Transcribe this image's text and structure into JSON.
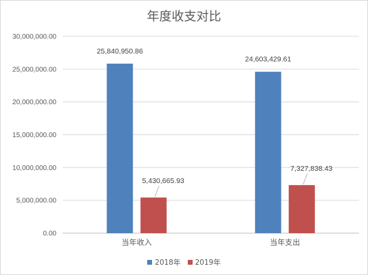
{
  "chart_data": {
    "type": "bar",
    "title": "年度收支对比",
    "categories": [
      "当年收入",
      "当年支出"
    ],
    "series": [
      {
        "name": "2018年",
        "color": "#4f81bd",
        "values": [
          25840950.86,
          24603429.61
        ],
        "labels": [
          "25,840,950.86",
          "24,603,429.61"
        ]
      },
      {
        "name": "2019年",
        "color": "#c0504d",
        "values": [
          5430665.93,
          7327838.43
        ],
        "labels": [
          "5,430,665.93",
          "7,327,838.43"
        ]
      }
    ],
    "ylim": [
      0,
      30000000
    ],
    "yticks": [
      0,
      5000000,
      10000000,
      15000000,
      20000000,
      25000000,
      30000000
    ],
    "ytick_labels": [
      "0.00",
      "5,000,000.00",
      "10,000,000.00",
      "15,000,000.00",
      "20,000,000.00",
      "25,000,000.00",
      "30,000,000.00"
    ],
    "grid": true,
    "legend_position": "bottom"
  }
}
